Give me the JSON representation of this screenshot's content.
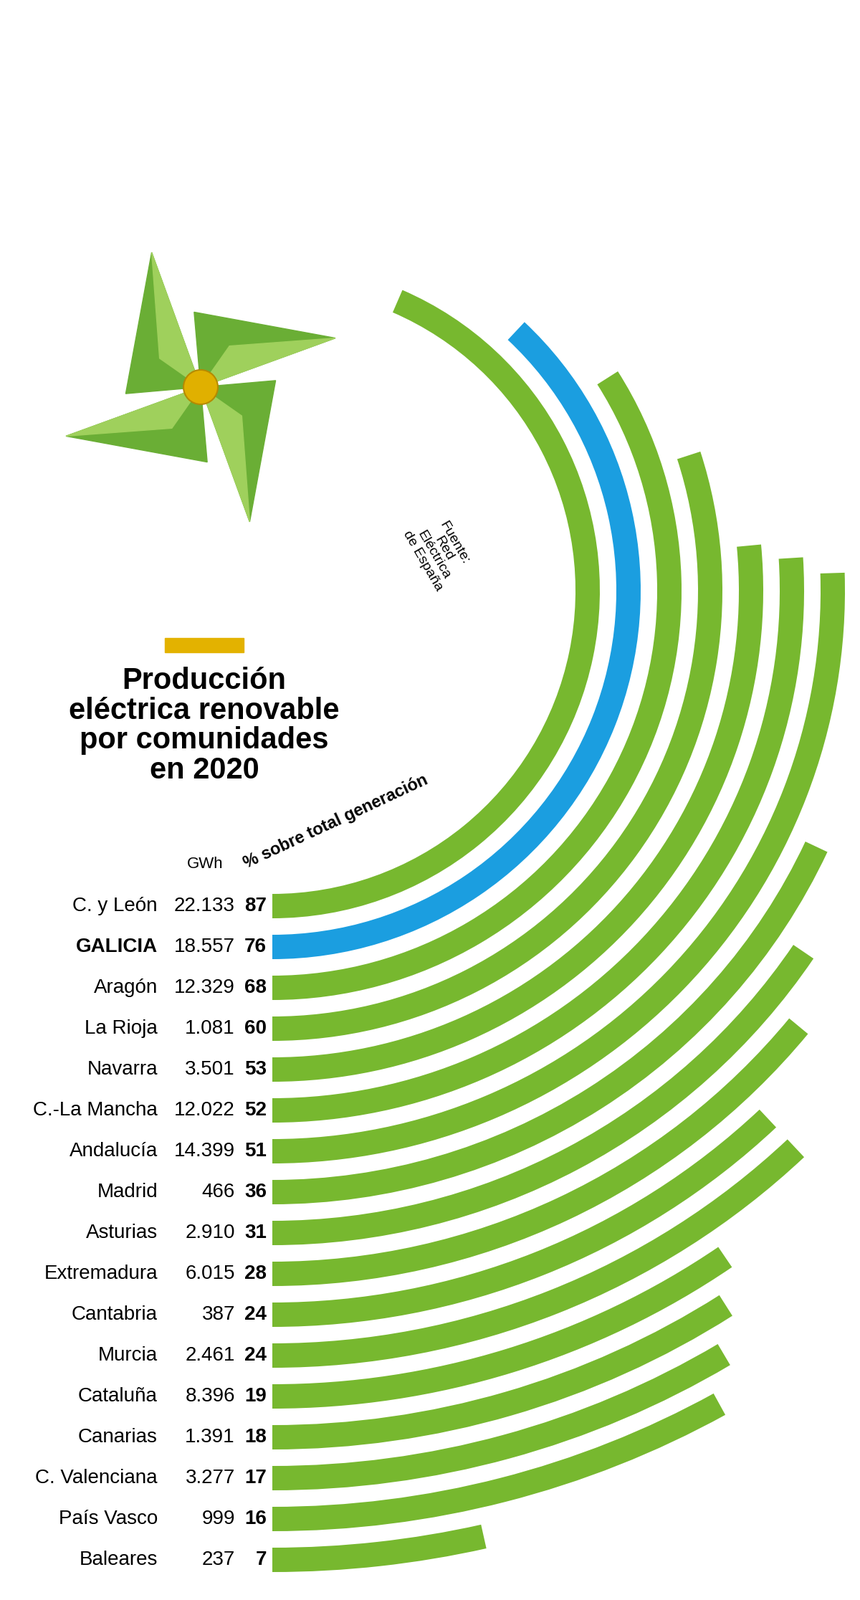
{
  "chart_data": {
    "type": "radial_bar",
    "title": "Producción\neléctrica renovable\npor comunidades\nen 2020",
    "source": "Fuente:\nRed\nEléctrica\nde España",
    "categories": [
      "C. y León",
      "GALICIA",
      "Aragón",
      "La Rioja",
      "Navarra",
      "C.-La Mancha",
      "Andalucía",
      "Madrid",
      "Asturias",
      "Extremadura",
      "Cantabria",
      "Murcia",
      "Cataluña",
      "Canarias",
      "C. Valenciana",
      "País Vasco",
      "Baleares"
    ],
    "values_header": "% sobre total generación",
    "values": [
      87,
      76,
      68,
      60,
      53,
      52,
      51,
      36,
      31,
      28,
      24,
      24,
      19,
      18,
      17,
      16,
      7
    ],
    "data_labels": true,
    "gwh": {
      "header": "GWh",
      "values": [
        22133,
        18557,
        12329,
        1081,
        3501,
        12022,
        14399,
        466,
        2910,
        6015,
        387,
        2461,
        8396,
        1391,
        3277,
        999,
        237
      ],
      "value_labels": [
        "22.133",
        "18.557",
        "12.329",
        "1.081",
        "3.501",
        "12.022",
        "14.399",
        "466",
        "2.910",
        "6.015",
        "387",
        "2.461",
        "8.396",
        "1.391",
        "3.277",
        "999",
        "237"
      ]
    },
    "colors": [
      "#77b82f",
      "#1b9ee0",
      "#77b82f",
      "#77b82f",
      "#77b82f",
      "#77b82f",
      "#77b82f",
      "#77b82f",
      "#77b82f",
      "#77b82f",
      "#77b82f",
      "#77b82f",
      "#77b82f",
      "#77b82f",
      "#77b82f",
      "#77b82f",
      "#77b82f"
    ],
    "tick_labels": false
  }
}
